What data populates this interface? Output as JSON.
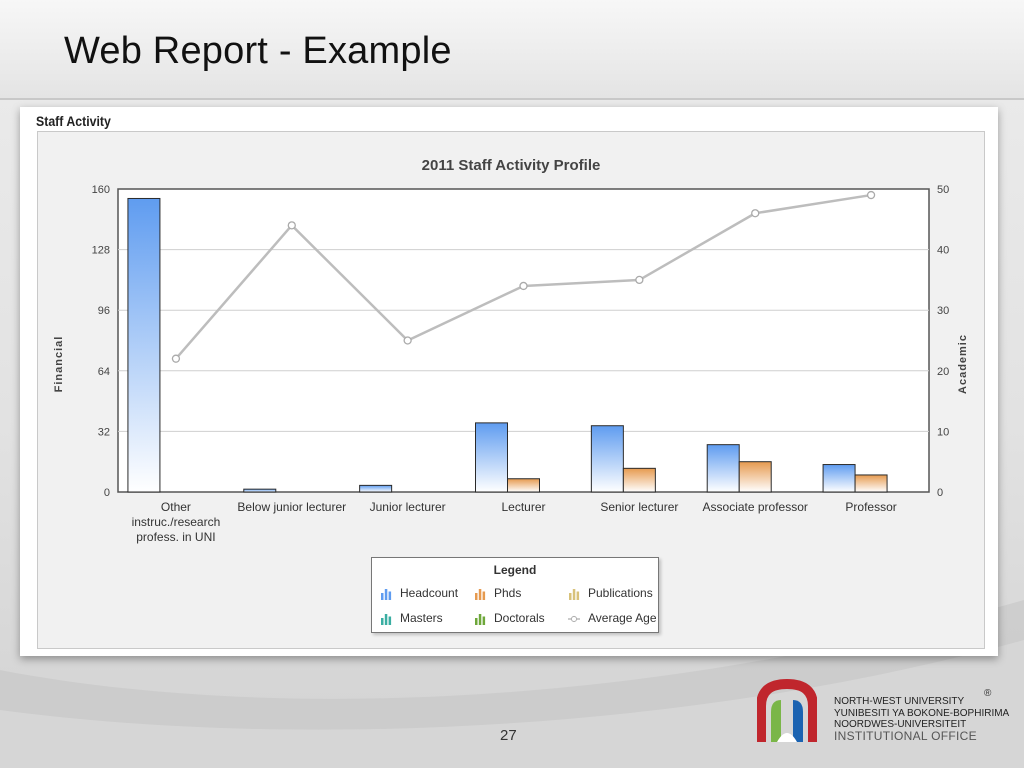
{
  "slide": {
    "title": "Web Report - Example",
    "page_number": "27"
  },
  "panel": {
    "title": "Staff Activity"
  },
  "chart_data": {
    "type": "bar",
    "title": "2011 Staff Activity Profile",
    "categories": [
      [
        "Other",
        "instruc./research",
        "profess. in UNI"
      ],
      [
        "Below junior lecturer"
      ],
      [
        "Junior lecturer"
      ],
      [
        "Lecturer"
      ],
      [
        "Senior lecturer"
      ],
      [
        "Associate professor"
      ],
      [
        "Professor"
      ]
    ],
    "y_left": {
      "label": "Financial",
      "min": 0,
      "max": 160,
      "ticks": [
        0,
        32,
        64,
        96,
        128,
        160
      ]
    },
    "y_right": {
      "label": "Academic",
      "min": 0,
      "max": 50,
      "ticks": [
        0,
        10,
        20,
        30,
        40,
        50
      ]
    },
    "grid": true,
    "series": [
      {
        "name": "Headcount",
        "kind": "bar",
        "axis": "left",
        "color": "#5f9cf0",
        "values": [
          155,
          1.5,
          3.5,
          36.5,
          35,
          25,
          14.5
        ]
      },
      {
        "name": "Phds",
        "kind": "bar",
        "axis": "left",
        "color": "#e69a4f",
        "values": [
          0,
          0,
          0,
          7,
          12.5,
          16,
          9
        ]
      },
      {
        "name": "Average Age",
        "kind": "line",
        "axis": "right",
        "color": "#bdbdbd",
        "values": [
          22,
          44,
          25,
          34,
          35,
          46,
          49
        ]
      }
    ],
    "legend": {
      "title": "Legend",
      "placement": "bottom-center",
      "items": [
        {
          "name": "Headcount",
          "color": "#5f9cf0",
          "icon": "bar-chart-icon"
        },
        {
          "name": "Phds",
          "color": "#e69a4f",
          "icon": "bar-chart-icon"
        },
        {
          "name": "Publications",
          "color": "#d8c27a",
          "icon": "bar-chart-icon"
        },
        {
          "name": "Masters",
          "color": "#3aaea2",
          "icon": "bar-chart-icon"
        },
        {
          "name": "Doctorals",
          "color": "#6ea73a",
          "icon": "bar-chart-icon"
        },
        {
          "name": "Average Age",
          "color": "#b0b0b0",
          "icon": "line-marker-icon"
        }
      ]
    }
  },
  "footer": {
    "org_lines": [
      "NORTH-WEST UNIVERSITY",
      "YUNIBESITI YA BOKONE-BOPHIRIMA",
      "NOORDWES-UNIVERSITEIT",
      "INSTITUTIONAL OFFICE"
    ],
    "registered": "®",
    "logo_colors": {
      "red": "#c0262d",
      "green": "#7ab648",
      "blue": "#1b63b1"
    }
  }
}
